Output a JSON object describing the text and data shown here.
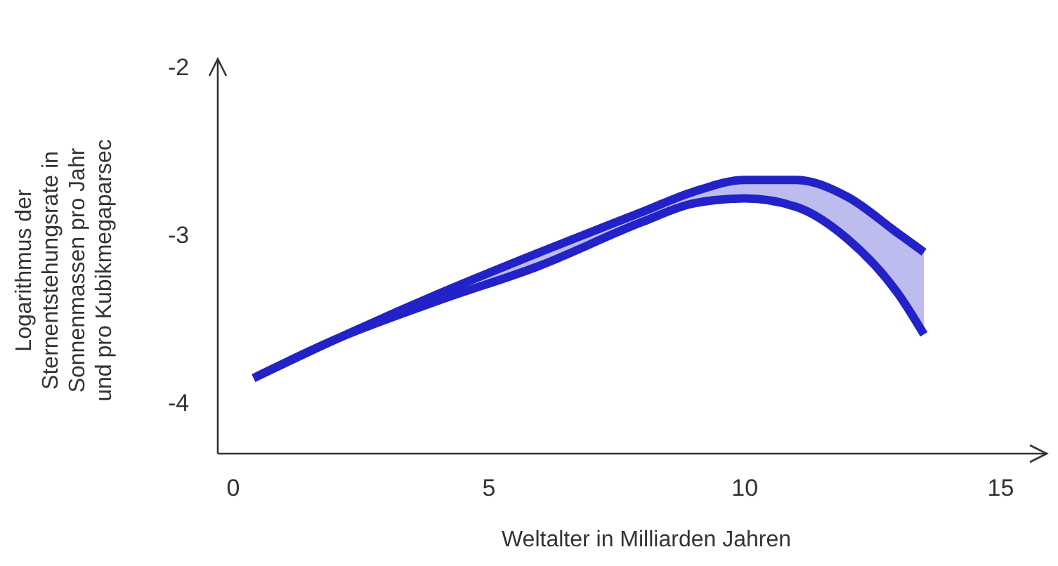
{
  "chart_data": {
    "type": "line",
    "xlabel": "Weltalter in Milliarden Jahren",
    "ylabel": "Logarithmus der\nSternentstehungsrate in\nSonnenmassen pro Jahr\nund pro Kubikmegaparsec",
    "x": [
      0.4,
      2,
      4,
      6,
      8,
      9,
      10,
      11,
      12,
      13,
      13.5
    ],
    "series": [
      {
        "color": "#2222c8",
        "values": [
          -3.85,
          -3.62,
          -3.35,
          -3.1,
          -2.86,
          -2.74,
          -2.67,
          -2.67,
          -2.77,
          -2.99,
          -3.1
        ],
        "lower": [
          -3.85,
          -3.62,
          -3.39,
          -3.18,
          -2.92,
          -2.81,
          -2.78,
          -2.83,
          -3.02,
          -3.35,
          -3.59
        ],
        "upper": [
          -3.85,
          -3.62,
          -3.35,
          -3.1,
          -2.86,
          -2.74,
          -2.67,
          -2.67,
          -2.77,
          -2.99,
          -3.1
        ]
      },
      {
        "color": "#2222c8",
        "values": [
          -3.85,
          -3.62,
          -3.39,
          -3.18,
          -2.92,
          -2.81,
          -2.78,
          -2.83,
          -3.02,
          -3.35,
          -3.59
        ]
      }
    ],
    "xlim": [
      -0.3,
      15.9
    ],
    "ylim": [
      -4.3,
      -1.95
    ],
    "xticks": [
      0,
      5,
      10,
      15
    ],
    "yticks": [
      -4,
      -3,
      -2
    ],
    "grid": false,
    "marker": "none",
    "line_style": "solid"
  }
}
